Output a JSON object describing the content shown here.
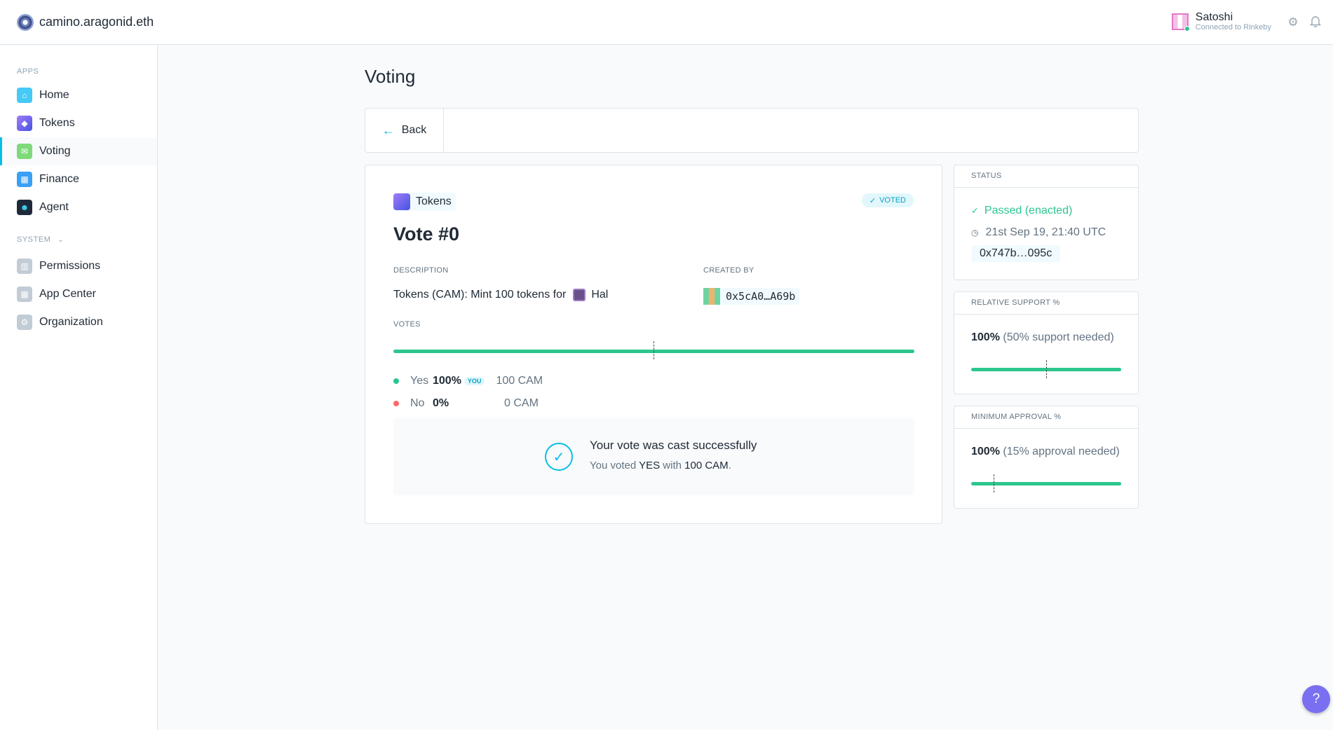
{
  "header": {
    "org_name": "camino.aragonid.eth",
    "user_name": "Satoshi",
    "user_network": "Connected to Rinkeby",
    "icons": [
      "settings-icon",
      "bell-icon"
    ]
  },
  "sidebar": {
    "apps_label": "APPS",
    "system_label": "SYSTEM",
    "apps": [
      {
        "label": "Home",
        "icon": "home-icon",
        "color": "#45c9f5"
      },
      {
        "label": "Tokens",
        "icon": "tokens-icon",
        "color": "#6b5cf0"
      },
      {
        "label": "Voting",
        "icon": "voting-icon",
        "color": "#7fd97a"
      },
      {
        "label": "Finance",
        "icon": "finance-icon",
        "color": "#3aa0f5"
      },
      {
        "label": "Agent",
        "icon": "agent-icon",
        "color": "#1e2a3a"
      }
    ],
    "system": [
      {
        "label": "Permissions",
        "icon": "permissions-icon",
        "color": "#c2ccd6"
      },
      {
        "label": "App Center",
        "icon": "app-center-icon",
        "color": "#c2ccd6"
      },
      {
        "label": "Organization",
        "icon": "organization-icon",
        "color": "#c2ccd6"
      }
    ]
  },
  "main": {
    "page_title": "Voting",
    "back_label": "Back",
    "vote": {
      "app_label": "Tokens",
      "voted_badge": "VOTED",
      "title": "Vote #0",
      "description_label": "DESCRIPTION",
      "description_text": "Tokens (CAM): Mint 100 tokens for",
      "description_target": "Hal",
      "created_by_label": "CREATED BY",
      "creator_address": "0x5cA0…A69b",
      "votes_label": "VOTES",
      "yes_fraction": 1.0,
      "options": [
        {
          "label": "Yes",
          "pct": "100%",
          "you": "YOU",
          "amount": "100 CAM",
          "color": "#2cc68f"
        },
        {
          "label": "No",
          "pct": "0%",
          "you": "",
          "amount": "0 CAM",
          "color": "#ff6969"
        }
      ],
      "success_title": "Your vote was cast successfully",
      "success_prefix": "You voted",
      "success_choice": "YES",
      "success_mid": "with",
      "success_amount": "100 CAM"
    },
    "status": {
      "label": "STATUS",
      "state": "Passed (enacted)",
      "date": "21st Sep 19, 21:40 UTC",
      "address": "0x747b…095c"
    },
    "support": {
      "label": "RELATIVE SUPPORT %",
      "value": "100%",
      "note": "(50% support needed)",
      "fraction": 1.0,
      "required": 0.5
    },
    "approval": {
      "label": "MINIMUM APPROVAL %",
      "value": "100%",
      "note": "(15% approval needed)",
      "fraction": 1.0,
      "required": 0.15
    },
    "help_label": "?"
  }
}
